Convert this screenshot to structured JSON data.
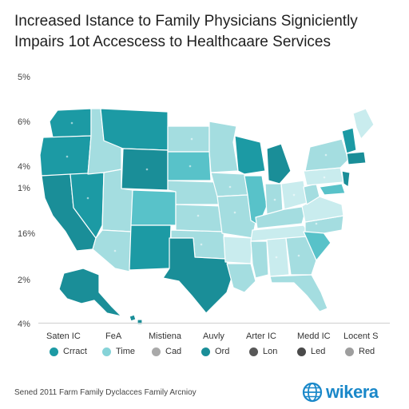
{
  "title": {
    "line1": "Increased Ιstance to Family Physicians Signiciently",
    "line2": "Impairs 1ot Accescess to Healthcaare Services"
  },
  "y_labels": [
    "5%",
    "6%",
    "4%",
    "1%",
    "16%",
    "2%",
    "4%"
  ],
  "x_labels": [
    "Saten IC",
    "FeA",
    "Mistiena",
    "Auvly",
    "Arter IC",
    "Medd IC",
    "Locent S"
  ],
  "legend": [
    {
      "label": "Crract",
      "color": "#1c9aa4"
    },
    {
      "label": "Time",
      "color": "#86d3d8"
    },
    {
      "label": "Cad",
      "color": "#a9a9a9"
    },
    {
      "label": "Ord",
      "color": "#1a8e98"
    },
    {
      "label": "Lon",
      "color": "#585858"
    },
    {
      "label": "Led",
      "color": "#4a4a4a"
    },
    {
      "label": "Red",
      "color": "#9e9e9e"
    }
  ],
  "footer": "Sened 2011 Farm Family Dyclacces Family Arcnioy",
  "brand": {
    "name": "wikera",
    "icon": "globe-icon",
    "color": "#1a88c9"
  },
  "colors": {
    "dark": "#1c9aa4",
    "mid": "#58c2c9",
    "light": "#a4dde0",
    "pale": "#c9ecee"
  }
}
